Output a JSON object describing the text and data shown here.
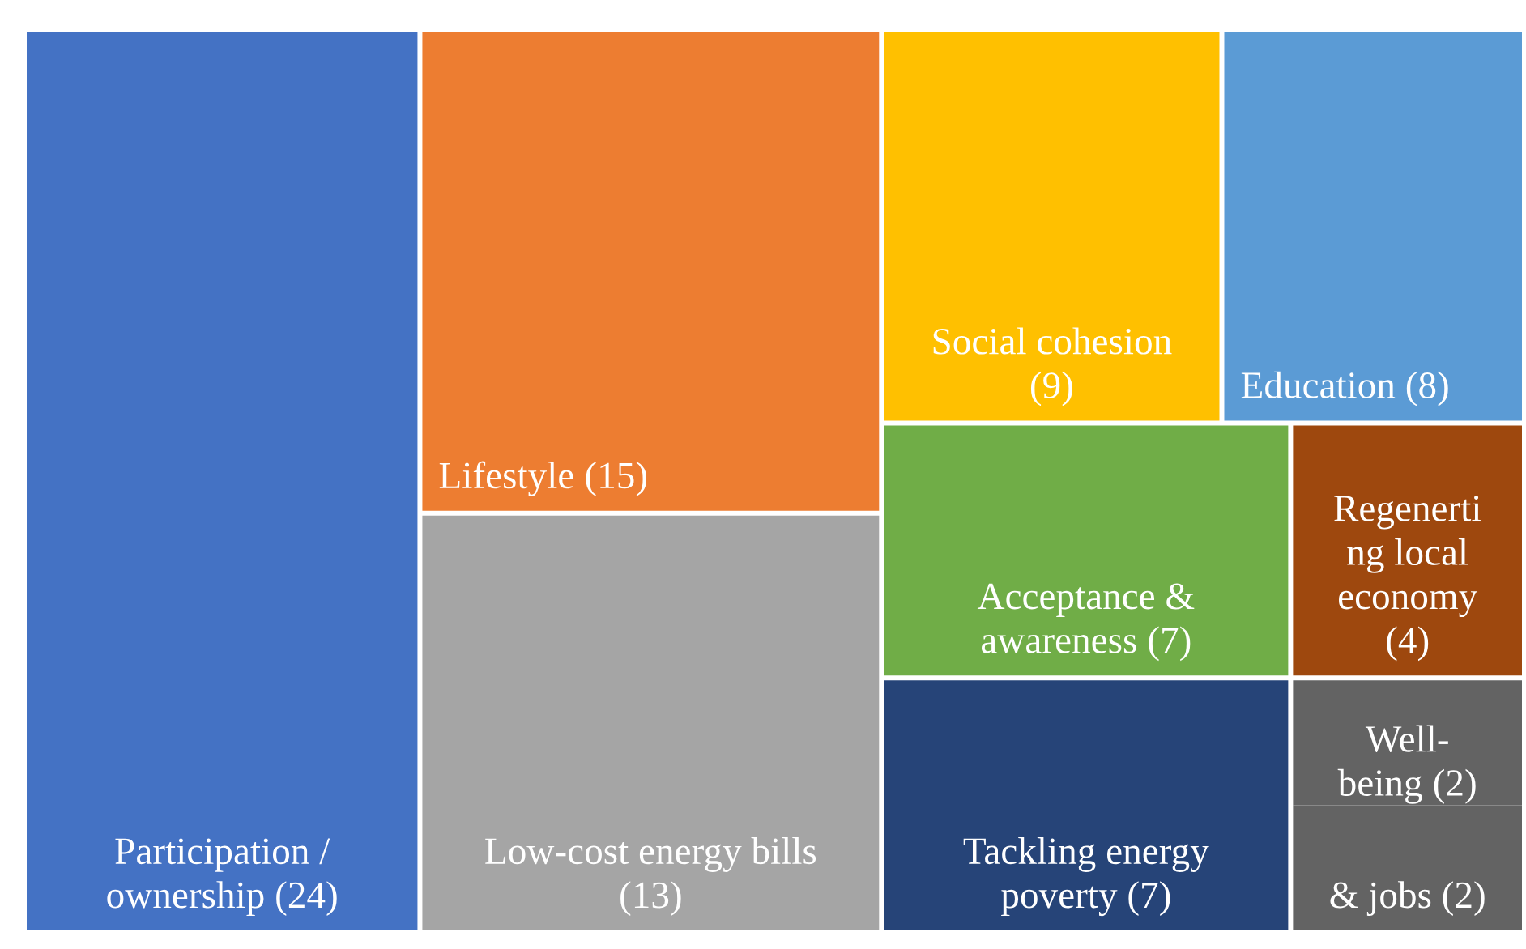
{
  "chart_data": {
    "type": "other",
    "categories": [
      "Participation /\nownership",
      "Lifestyle",
      "Low-cost energy bills\n",
      "Social cohesion\n",
      "Education",
      "Acceptance &\nawareness",
      "Regenerti\nng local\neconomy\n",
      "Tackling energy\npoverty",
      "Well-\nbeing",
      "& jobs"
    ],
    "values": [
      24,
      15,
      13,
      9,
      8,
      7,
      4,
      7,
      2,
      2
    ],
    "value_labels": [
      "(24)",
      "(15)",
      "(13)",
      "(9)",
      "(8)",
      "(7)",
      "(4)",
      "(7)",
      "(2)",
      "(2)"
    ],
    "colors": [
      "#4472c4",
      "#ed7d31",
      "#a5a5a5",
      "#ffc000",
      "#5b9bd5",
      "#70ad47",
      "#9e480e",
      "#264478",
      "#636363",
      "#636363"
    ]
  }
}
